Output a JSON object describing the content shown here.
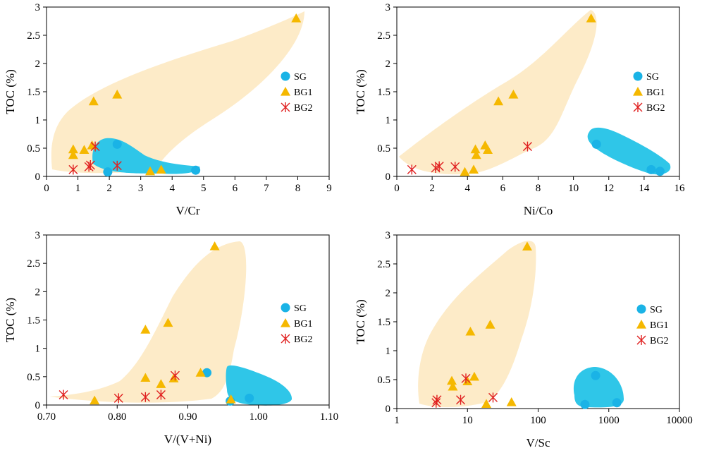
{
  "chart_data": [
    {
      "type": "scatter",
      "xlabel": "V/Cr",
      "ylabel": "TOC (%)",
      "xlim": [
        0,
        9
      ],
      "ylim": [
        0,
        3
      ],
      "xscale": "linear",
      "xticks": [
        "0",
        "1",
        "2",
        "3",
        "4",
        "5",
        "6",
        "7",
        "8",
        "9"
      ],
      "yticks": [
        "0",
        "0.5",
        "1",
        "1.5",
        "2",
        "2.5",
        "3"
      ],
      "legend_position": "right",
      "legend": [
        "SG",
        "BG1",
        "BG2"
      ],
      "series": [
        {
          "name": "SG",
          "marker": "circle",
          "color": "#1AB3E6",
          "points": [
            [
              2.25,
              0.57
            ],
            [
              1.95,
              0.08
            ],
            [
              4.75,
              0.11
            ]
          ]
        },
        {
          "name": "BG1",
          "marker": "triangle",
          "color": "#F5B800",
          "points": [
            [
              7.95,
              2.8
            ],
            [
              2.25,
              1.45
            ],
            [
              1.5,
              1.33
            ],
            [
              0.85,
              0.48
            ],
            [
              0.85,
              0.38
            ],
            [
              1.2,
              0.47
            ],
            [
              1.45,
              0.55
            ],
            [
              3.3,
              0.09
            ],
            [
              3.65,
              0.12
            ]
          ]
        },
        {
          "name": "BG2",
          "marker": "star",
          "color": "#E02020",
          "points": [
            [
              0.85,
              0.12
            ],
            [
              1.35,
              0.17
            ],
            [
              1.4,
              0.2
            ],
            [
              1.55,
              0.53
            ],
            [
              2.25,
              0.19
            ]
          ]
        }
      ]
    },
    {
      "type": "scatter",
      "xlabel": "Ni/Co",
      "ylabel": "TOC (%)",
      "xlim": [
        0,
        16
      ],
      "ylim": [
        0,
        3
      ],
      "xscale": "linear",
      "xticks": [
        "0",
        "2",
        "4",
        "6",
        "8",
        "10",
        "12",
        "14",
        "16"
      ],
      "yticks": [
        "0",
        "0.5",
        "1",
        "1.5",
        "2",
        "2.5",
        "3"
      ],
      "legend_position": "right",
      "legend": [
        "SG",
        "BG1",
        "BG2"
      ],
      "series": [
        {
          "name": "SG",
          "marker": "circle",
          "color": "#1AB3E6",
          "points": [
            [
              11.3,
              0.57
            ],
            [
              14.4,
              0.12
            ],
            [
              14.9,
              0.09
            ]
          ]
        },
        {
          "name": "BG1",
          "marker": "triangle",
          "color": "#F5B800",
          "points": [
            [
              11.0,
              2.8
            ],
            [
              6.6,
              1.45
            ],
            [
              5.75,
              1.33
            ],
            [
              4.45,
              0.48
            ],
            [
              5.0,
              0.55
            ],
            [
              5.15,
              0.47
            ],
            [
              4.5,
              0.38
            ],
            [
              4.35,
              0.12
            ],
            [
              3.85,
              0.08
            ]
          ]
        },
        {
          "name": "BG2",
          "marker": "star",
          "color": "#E02020",
          "points": [
            [
              0.85,
              0.12
            ],
            [
              2.2,
              0.15
            ],
            [
              2.4,
              0.18
            ],
            [
              3.3,
              0.17
            ],
            [
              7.4,
              0.53
            ]
          ]
        }
      ]
    },
    {
      "type": "scatter",
      "xlabel": "V/(V+Ni)",
      "ylabel": "TOC (%)",
      "xlim": [
        0.7,
        1.1
      ],
      "ylim": [
        0,
        3
      ],
      "xscale": "linear",
      "xticks": [
        "0.70",
        "0.80",
        "0.90",
        "1.00",
        "1.10"
      ],
      "yticks": [
        "0",
        "0.5",
        "1",
        "1.5",
        "2",
        "2.5",
        "3"
      ],
      "legend_position": "right",
      "legend": [
        "SG",
        "BG1",
        "BG2"
      ],
      "series": [
        {
          "name": "SG",
          "marker": "circle",
          "color": "#1AB3E6",
          "points": [
            [
              0.927,
              0.57
            ],
            [
              0.96,
              0.07
            ],
            [
              0.987,
              0.12
            ]
          ]
        },
        {
          "name": "BG1",
          "marker": "triangle",
          "color": "#F5B800",
          "points": [
            [
              0.938,
              2.8
            ],
            [
              0.872,
              1.45
            ],
            [
              0.84,
              1.33
            ],
            [
              0.84,
              0.48
            ],
            [
              0.862,
              0.37
            ],
            [
              0.88,
              0.47
            ],
            [
              0.918,
              0.57
            ],
            [
              0.768,
              0.08
            ],
            [
              0.961,
              0.1
            ]
          ]
        },
        {
          "name": "BG2",
          "marker": "star",
          "color": "#E02020",
          "points": [
            [
              0.724,
              0.18
            ],
            [
              0.802,
              0.12
            ],
            [
              0.84,
              0.14
            ],
            [
              0.862,
              0.18
            ],
            [
              0.882,
              0.52
            ]
          ]
        }
      ]
    },
    {
      "type": "scatter",
      "xlabel": "V/Sc",
      "ylabel": "TOC (%)",
      "xlim": [
        1,
        10000
      ],
      "ylim": [
        0,
        3
      ],
      "xscale": "log",
      "xticks": [
        "1",
        "10",
        "100",
        "1000",
        "10000"
      ],
      "yticks": [
        "0",
        "0.5",
        "1",
        "1.5",
        "2",
        "2.5",
        "3"
      ],
      "legend_position": "right",
      "legend": [
        "SG",
        "BG1",
        "BG2"
      ],
      "series": [
        {
          "name": "SG",
          "marker": "circle",
          "color": "#1AB3E6",
          "points": [
            [
              650,
              0.57
            ],
            [
              460,
              0.07
            ],
            [
              1300,
              0.1
            ]
          ]
        },
        {
          "name": "BG1",
          "marker": "triangle",
          "color": "#F5B800",
          "points": [
            [
              70,
              2.8
            ],
            [
              21,
              1.45
            ],
            [
              11,
              1.33
            ],
            [
              6,
              0.48
            ],
            [
              6.2,
              0.38
            ],
            [
              10,
              0.47
            ],
            [
              12.5,
              0.55
            ],
            [
              18.5,
              0.08
            ],
            [
              42,
              0.11
            ]
          ]
        },
        {
          "name": "BG2",
          "marker": "star",
          "color": "#E02020",
          "points": [
            [
              3.6,
              0.1
            ],
            [
              3.7,
              0.15
            ],
            [
              8,
              0.15
            ],
            [
              9.5,
              0.52
            ],
            [
              23,
              0.19
            ]
          ]
        }
      ]
    }
  ]
}
